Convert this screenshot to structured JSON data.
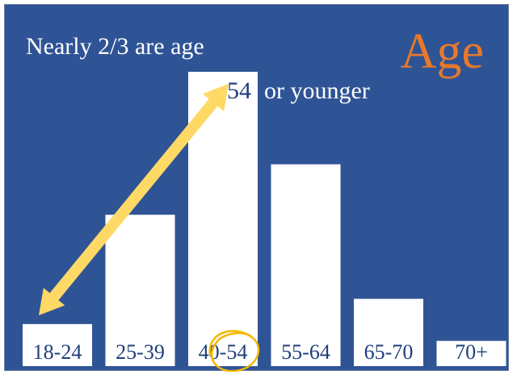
{
  "slide": {
    "title": "Age",
    "caption_line1": "Nearly 2/3 are age",
    "caption_line2_number": "54",
    "caption_line2_rest": "or younger"
  },
  "colors": {
    "background": "#2f5496",
    "bar": "#ffffff",
    "label_text": "#1f3f7a",
    "title": "#e8782a",
    "arrow": "#ffd966",
    "circle": "#f5b800"
  },
  "chart_data": {
    "type": "bar",
    "title": "Age",
    "categories": [
      "18-24",
      "25-39",
      "40-54",
      "55-64",
      "65-70",
      "70+"
    ],
    "values": [
      5,
      18,
      35,
      24,
      8,
      3
    ],
    "ylim": [
      0,
      35
    ],
    "xlabel": "",
    "ylabel": "",
    "grid": false,
    "legend": "none",
    "annotations": [
      {
        "type": "double-arrow",
        "from_category": "18-24",
        "to_category": "40-54"
      },
      {
        "type": "hand-drawn-circle",
        "category": "40-54"
      }
    ]
  }
}
